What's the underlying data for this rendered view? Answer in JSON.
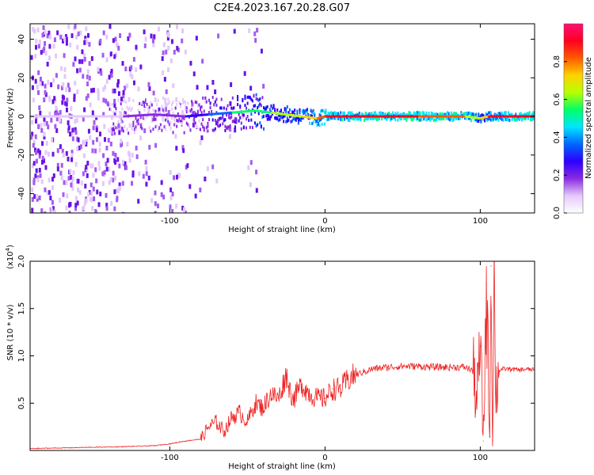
{
  "title": "C2E4.2023.167.20.28.G07",
  "colors": {
    "snr_line": "#ee2222",
    "spectrum_low": "#8a2be2",
    "spectrum_high": "#ff0055",
    "colorbar": [
      "#ffffff",
      "#e5c9fb",
      "#8a2be2",
      "#2d00ff",
      "#0066ff",
      "#00e5ff",
      "#00ff66",
      "#b7ff00",
      "#ffd200",
      "#ff5a00",
      "#ff0022",
      "#ff1070"
    ]
  },
  "chart_data": [
    {
      "type": "heatmap",
      "xlabel": "Height of straight line (km)",
      "ylabel": "Frequency (Hz)",
      "xlim": [
        -190,
        135
      ],
      "ylim": [
        -50,
        48
      ],
      "xticks": [
        -100,
        0,
        100
      ],
      "xtick_labels": [
        "-100",
        "0",
        "100"
      ],
      "yticks": [
        -40,
        -20,
        0,
        20,
        40
      ],
      "ytick_labels": [
        "-40",
        "-20",
        "0",
        "20",
        "40"
      ],
      "colorbar": {
        "label": "Normalized spectral amplitude",
        "range": [
          0,
          1
        ],
        "ticks": [
          0.0,
          0.2,
          0.4,
          0.6,
          0.8
        ],
        "tick_labels": [
          "0.0",
          "0.2",
          "0.4",
          "0.6",
          "0.8"
        ]
      },
      "signal_track": {
        "x": [
          -190,
          -130,
          -110,
          -90,
          -75,
          -60,
          -45,
          -35,
          -25,
          -15,
          -5,
          0,
          30,
          60,
          90,
          100,
          105,
          135
        ],
        "y": [
          0,
          0,
          1,
          0,
          1,
          2,
          3,
          2,
          1,
          0,
          -1,
          0,
          0,
          0,
          0,
          -1,
          0,
          0
        ],
        "amplitude": [
          0.05,
          0.15,
          0.2,
          0.25,
          0.35,
          0.45,
          0.55,
          0.6,
          0.65,
          0.7,
          0.8,
          0.9,
          0.95,
          0.95,
          0.9,
          0.7,
          0.8,
          0.95
        ]
      }
    },
    {
      "type": "line",
      "xlabel": "Height of straight line (km)",
      "ylabel": "SNR (10 * v/v)",
      "y_multiplier_label": "(x10",
      "y_multiplier_exp": "4",
      "y_multiplier_close": ")",
      "xlim": [
        -190,
        135
      ],
      "ylim": [
        0,
        2.0
      ],
      "xticks": [
        -100,
        0,
        100
      ],
      "xtick_labels": [
        "-100",
        "0",
        "100"
      ],
      "yticks": [
        0.5,
        1.0,
        1.5,
        2.0
      ],
      "ytick_labels": [
        "0.5",
        "1.0",
        "1.5",
        "2.0"
      ],
      "series": [
        {
          "x": [
            -190,
            -160,
            -130,
            -110,
            -100,
            -90,
            -80,
            -75,
            -70,
            -65,
            -60,
            -55,
            -50,
            -45,
            -40,
            -35,
            -30,
            -25,
            -22,
            -20,
            -15,
            -10,
            -5,
            0,
            5,
            10,
            15,
            20,
            30,
            40,
            50,
            60,
            70,
            80,
            90,
            95,
            98,
            100,
            102,
            104,
            106,
            107,
            108,
            109,
            110,
            112,
            115,
            120,
            125,
            130,
            135
          ],
          "y": [
            0.02,
            0.03,
            0.04,
            0.05,
            0.07,
            0.1,
            0.12,
            0.25,
            0.3,
            0.2,
            0.35,
            0.4,
            0.3,
            0.5,
            0.45,
            0.6,
            0.55,
            0.8,
            0.6,
            0.55,
            0.7,
            0.6,
            0.55,
            0.55,
            0.65,
            0.65,
            0.75,
            0.8,
            0.86,
            0.88,
            0.89,
            0.89,
            0.88,
            0.88,
            0.88,
            0.85,
            0.55,
            1.1,
            0.1,
            1.75,
            0.15,
            1.95,
            0.1,
            1.8,
            0.6,
            0.85,
            0.86,
            0.86,
            0.85,
            0.86,
            0.85
          ]
        }
      ]
    }
  ]
}
